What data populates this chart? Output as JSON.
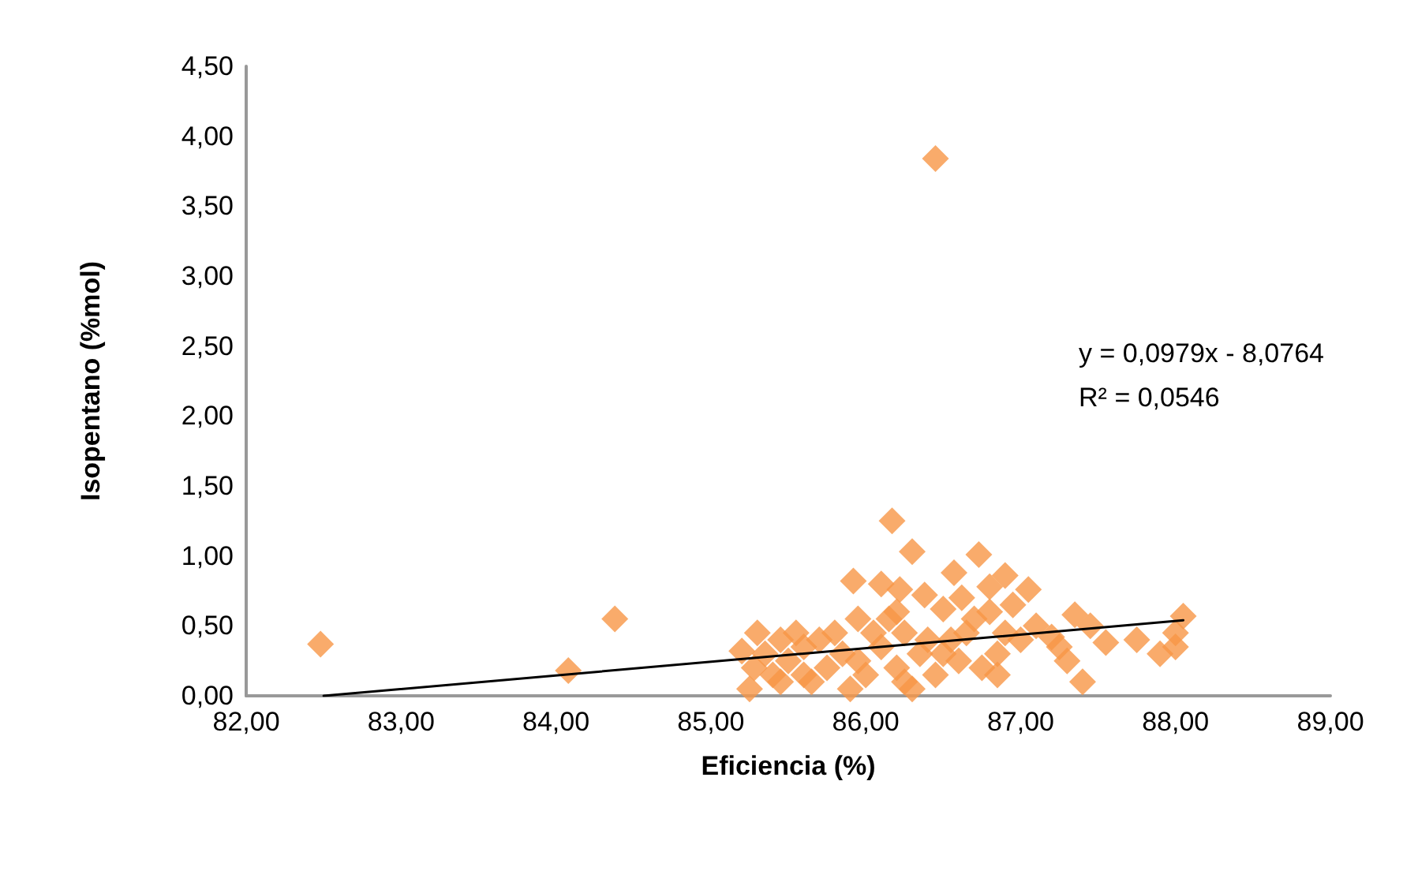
{
  "chart_data": {
    "type": "scatter",
    "xlabel": "Eficiencia (%)",
    "ylabel": "Isopentano (%mol)",
    "marker": "diamond",
    "grid": false,
    "annotations": [
      "y = 0,0979x - 8,0764\nR² = 0,0546"
    ],
    "xlim": [
      82,
      89
    ],
    "ylim": [
      0,
      4.5
    ],
    "xticks": [
      {
        "value": 82,
        "label": "82,00"
      },
      {
        "value": 83,
        "label": "83,00"
      },
      {
        "value": 84,
        "label": "84,00"
      },
      {
        "value": 85,
        "label": "85,00"
      },
      {
        "value": 86,
        "label": "86,00"
      },
      {
        "value": 87,
        "label": "87,00"
      },
      {
        "value": 88,
        "label": "88,00"
      },
      {
        "value": 89,
        "label": "89,00"
      }
    ],
    "yticks": [
      {
        "value": 0,
        "label": "0,00"
      },
      {
        "value": 0.5,
        "label": "0,50"
      },
      {
        "value": 1,
        "label": "1,00"
      },
      {
        "value": 1.5,
        "label": "1,50"
      },
      {
        "value": 2,
        "label": "2,00"
      },
      {
        "value": 2.5,
        "label": "2,50"
      },
      {
        "value": 3,
        "label": "3,00"
      },
      {
        "value": 3.5,
        "label": "3,50"
      },
      {
        "value": 4,
        "label": "4,00"
      },
      {
        "value": 4.5,
        "label": "4,50"
      }
    ],
    "series": [
      {
        "color": "#f79646",
        "x": [
          82.48,
          84.08,
          84.38,
          86.45,
          86.17,
          86.3,
          86.73,
          86.57,
          86.9,
          85.92,
          86.1,
          86.22,
          86.38,
          86.62,
          87.05,
          86.8,
          86.95,
          86.5,
          85.95,
          86.7,
          87.35,
          87.45,
          88.05,
          88.0,
          88.0,
          87.9,
          87.75,
          87.55,
          87.4,
          87.25,
          87.2,
          87.1,
          86.85,
          86.75,
          86.6,
          86.45,
          86.35,
          86.3,
          86.2,
          86.1,
          86.0,
          85.9,
          85.85,
          85.75,
          85.65,
          85.6,
          85.55,
          85.5,
          85.45,
          85.4,
          85.35,
          85.3,
          85.25,
          85.2,
          85.28,
          85.7,
          85.8,
          86.05,
          86.15,
          86.25,
          86.4,
          86.55,
          86.65,
          86.9,
          87.0,
          86.5,
          86.25,
          85.95,
          85.6,
          85.45,
          86.8,
          86.85,
          86.2,
          87.3
        ],
        "values": [
          0.37,
          0.18,
          0.55,
          3.84,
          1.25,
          1.03,
          1.01,
          0.88,
          0.86,
          0.82,
          0.8,
          0.76,
          0.72,
          0.7,
          0.76,
          0.78,
          0.65,
          0.62,
          0.55,
          0.55,
          0.58,
          0.5,
          0.57,
          0.45,
          0.35,
          0.3,
          0.4,
          0.38,
          0.1,
          0.35,
          0.42,
          0.5,
          0.3,
          0.2,
          0.25,
          0.15,
          0.3,
          0.05,
          0.2,
          0.35,
          0.15,
          0.05,
          0.3,
          0.2,
          0.1,
          0.35,
          0.45,
          0.25,
          0.4,
          0.15,
          0.3,
          0.45,
          0.05,
          0.32,
          0.2,
          0.4,
          0.45,
          0.45,
          0.55,
          0.45,
          0.4,
          0.4,
          0.45,
          0.45,
          0.4,
          0.3,
          0.1,
          0.25,
          0.15,
          0.1,
          0.6,
          0.15,
          0.6,
          0.25
        ]
      },
      {
        "type": "line",
        "color": "#000000",
        "marker": "none",
        "x": [
          82.5,
          88.05
        ],
        "values": [
          0.0,
          0.54
        ]
      }
    ]
  }
}
